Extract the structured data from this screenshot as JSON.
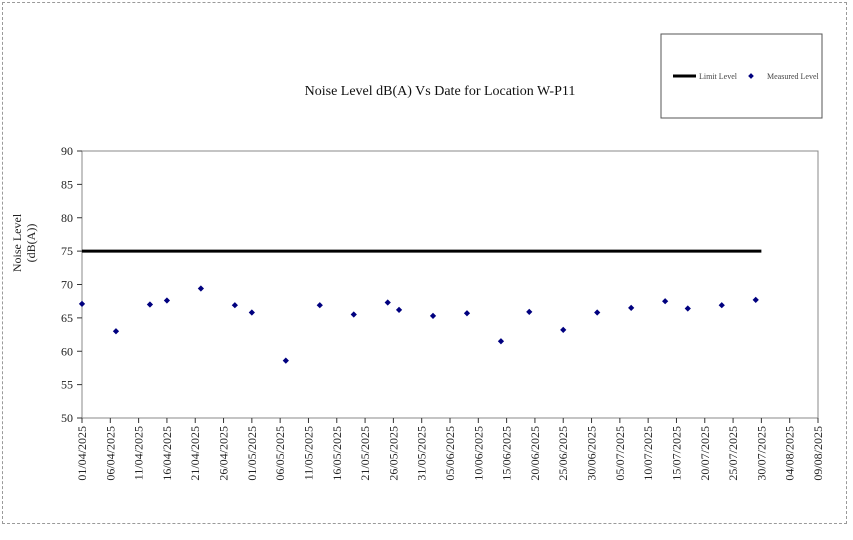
{
  "chart_data": {
    "type": "scatter",
    "title": "Noise Level dB(A) Vs Date for Location W-P11",
    "ylabel_lines": [
      "Noise Level",
      "(dB(A))"
    ],
    "ylim": [
      50,
      90
    ],
    "yticks": [
      50,
      55,
      60,
      65,
      70,
      75,
      80,
      85,
      90
    ],
    "xlim": [
      "01/04/2025",
      "09/08/2025"
    ],
    "xtick_labels": [
      "01/04/2025",
      "06/04/2025",
      "11/04/2025",
      "16/04/2025",
      "21/04/2025",
      "26/04/2025",
      "01/05/2025",
      "06/05/2025",
      "11/05/2025",
      "16/05/2025",
      "21/05/2025",
      "26/05/2025",
      "31/05/2025",
      "05/06/2025",
      "10/06/2025",
      "15/06/2025",
      "20/06/2025",
      "25/06/2025",
      "30/06/2025",
      "05/07/2025",
      "10/07/2025",
      "15/07/2025",
      "20/07/2025",
      "25/07/2025",
      "30/07/2025",
      "04/08/2025",
      "09/08/2025"
    ],
    "legend": {
      "position": "top-right"
    },
    "series": [
      {
        "name": "Limit Level",
        "kind": "line",
        "color": "#000000",
        "points": [
          {
            "x": "01/04/2025",
            "y": 75
          },
          {
            "x": "30/07/2025",
            "y": 75
          }
        ]
      },
      {
        "name": "Measured Level",
        "kind": "scatter",
        "color": "#00007f",
        "points": [
          {
            "x": "01/04/2025",
            "y": 67.1
          },
          {
            "x": "07/04/2025",
            "y": 63.0
          },
          {
            "x": "13/04/2025",
            "y": 67.0
          },
          {
            "x": "16/04/2025",
            "y": 67.6
          },
          {
            "x": "22/04/2025",
            "y": 69.4
          },
          {
            "x": "28/04/2025",
            "y": 66.9
          },
          {
            "x": "01/05/2025",
            "y": 65.8
          },
          {
            "x": "07/05/2025",
            "y": 58.6
          },
          {
            "x": "13/05/2025",
            "y": 66.9
          },
          {
            "x": "19/05/2025",
            "y": 65.5
          },
          {
            "x": "25/05/2025",
            "y": 67.3
          },
          {
            "x": "27/05/2025",
            "y": 66.2
          },
          {
            "x": "02/06/2025",
            "y": 65.3
          },
          {
            "x": "08/06/2025",
            "y": 65.7
          },
          {
            "x": "14/06/2025",
            "y": 61.5
          },
          {
            "x": "19/06/2025",
            "y": 65.9
          },
          {
            "x": "25/06/2025",
            "y": 63.2
          },
          {
            "x": "01/07/2025",
            "y": 65.8
          },
          {
            "x": "07/07/2025",
            "y": 66.5
          },
          {
            "x": "13/07/2025",
            "y": 67.5
          },
          {
            "x": "17/07/2025",
            "y": 66.4
          },
          {
            "x": "23/07/2025",
            "y": 66.9
          },
          {
            "x": "29/07/2025",
            "y": 67.7
          }
        ]
      }
    ]
  }
}
